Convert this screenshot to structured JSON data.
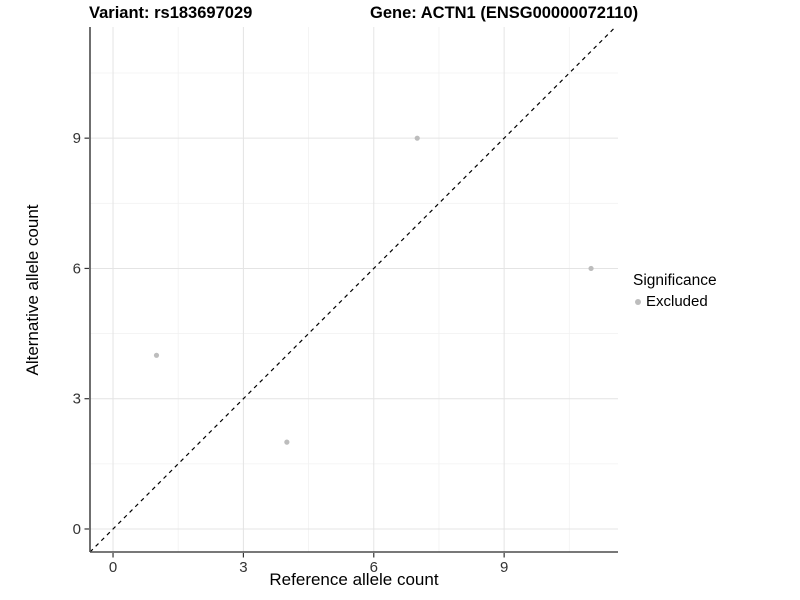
{
  "titles": {
    "variant": "Variant: rs183697029",
    "gene": "Gene: ACTN1 (ENSG00000072110)"
  },
  "axes": {
    "x_label": "Reference allele count",
    "y_label": "Alternative allele count"
  },
  "legend": {
    "title": "Significance",
    "items": [
      {
        "label": "Excluded",
        "color": "#bdbdbd"
      }
    ]
  },
  "chart_data": {
    "type": "scatter",
    "title": "Variant: rs183697029  /  Gene: ACTN1 (ENSG00000072110)",
    "xlabel": "Reference allele count",
    "ylabel": "Alternative allele count",
    "series": [
      {
        "name": "Excluded",
        "color": "#bdbdbd",
        "points": [
          [
            1,
            4
          ],
          [
            4,
            2
          ],
          [
            7,
            9
          ],
          [
            11,
            6
          ]
        ]
      }
    ],
    "reference_line": {
      "type": "identity y=x",
      "style": "dashed",
      "color": "#000000"
    },
    "xlim": [
      -0.53,
      11.62
    ],
    "ylim": [
      -0.53,
      11.56
    ],
    "x_ticks": [
      0,
      3,
      6,
      9
    ],
    "y_ticks": [
      0,
      3,
      6,
      9
    ],
    "x_minor": [
      1.5,
      4.5,
      7.5,
      10.5
    ],
    "y_minor": [
      1.5,
      4.5,
      7.5,
      10.5
    ],
    "grid": true,
    "legend_position": "right",
    "colors": {
      "grid_major": "#e4e4e4",
      "grid_minor": "#f2f2f2",
      "axis_line": "#4b4b4b",
      "tick_mark": "#333333",
      "tick_label": "#333333"
    }
  }
}
